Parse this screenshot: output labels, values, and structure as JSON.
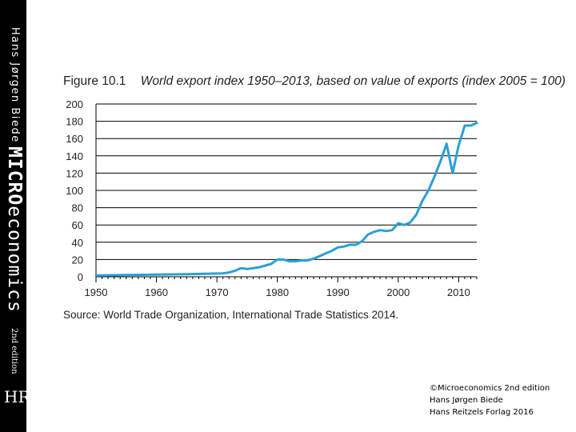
{
  "book_spine": {
    "author": "Hans Jørgen Biede",
    "title_bold": "MICRO",
    "title_rest": "economics",
    "edition": "2nd edition",
    "logo": "HR"
  },
  "figure": {
    "number": "Figure 10.1",
    "caption": "World export index 1950–2013, based on value of exports (index 2005 = 100)",
    "source": "Source: World Trade Organization, International Trade Statistics 2014."
  },
  "credit": {
    "line1": "©Microeconomics 2nd edition",
    "line2": "Hans Jørgen Biede",
    "line3": "Hans Reitzels Forlag 2016"
  },
  "colors": {
    "line": "#2a9fd6",
    "grid": "#000000",
    "spine": "#000000"
  },
  "chart_data": {
    "type": "line",
    "title": "World export index 1950–2013, based on value of exports (index 2005 = 100)",
    "xlabel": "",
    "ylabel": "",
    "xlim": [
      1950,
      2013
    ],
    "ylim": [
      0,
      200
    ],
    "x_ticks": [
      "1950",
      "1960",
      "1970",
      "1980",
      "1990",
      "2000",
      "2010"
    ],
    "y_ticks": [
      "0",
      "20",
      "40",
      "60",
      "80",
      "100",
      "120",
      "140",
      "160",
      "180",
      "200"
    ],
    "grid": "horizontal",
    "series": [
      {
        "name": "World export index",
        "x": [
          1950,
          1955,
          1960,
          1965,
          1968,
          1970,
          1971,
          1972,
          1973,
          1974,
          1975,
          1976,
          1977,
          1978,
          1979,
          1980,
          1981,
          1982,
          1983,
          1984,
          1985,
          1986,
          1987,
          1988,
          1989,
          1990,
          1991,
          1992,
          1993,
          1994,
          1995,
          1996,
          1997,
          1998,
          1999,
          2000,
          2001,
          2002,
          2003,
          2004,
          2005,
          2006,
          2007,
          2008,
          2009,
          2010,
          2011,
          2012,
          2013
        ],
        "y": [
          1.5,
          2,
          2.5,
          3,
          3.5,
          3.8,
          4,
          5,
          7,
          10,
          9,
          10,
          11,
          13,
          15,
          20,
          20,
          18,
          18,
          19,
          19,
          21,
          24,
          27,
          30,
          34,
          35,
          37,
          37,
          41,
          49,
          52,
          54,
          53,
          54,
          62,
          60,
          63,
          72,
          88,
          100,
          116,
          134,
          154,
          120,
          152,
          175,
          175,
          178
        ]
      }
    ]
  }
}
